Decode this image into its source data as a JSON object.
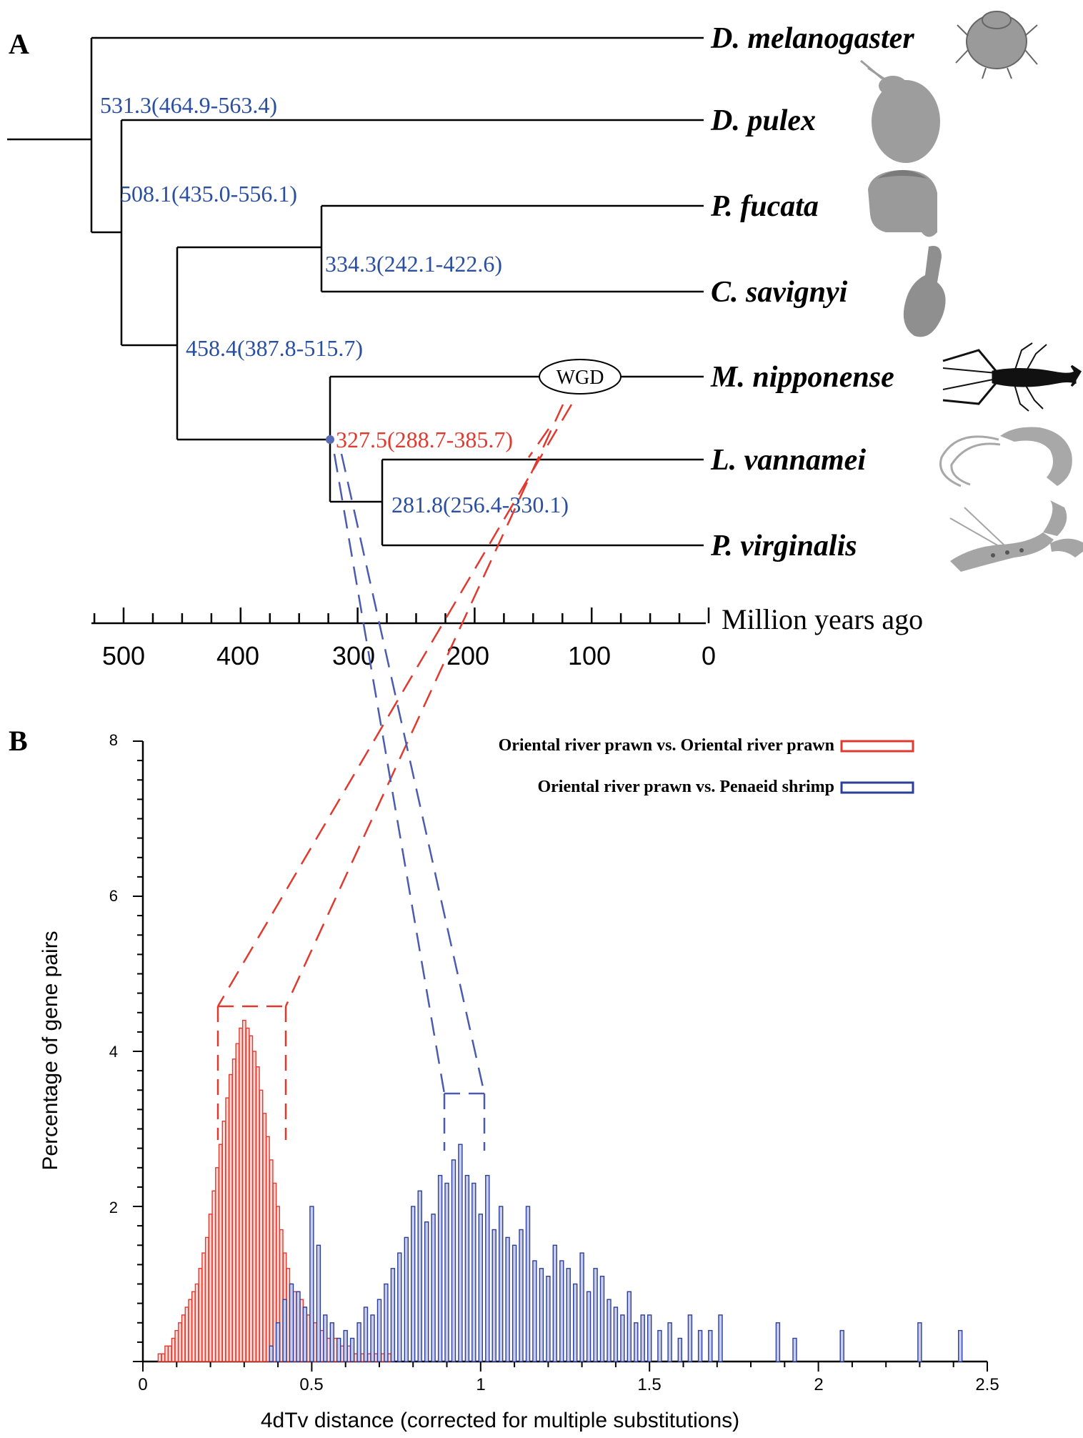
{
  "panel_a": {
    "label": "A",
    "axis_label": "Million years ago",
    "ticks": [
      "500",
      "400",
      "300",
      "200",
      "100",
      "0"
    ],
    "taxa": [
      "D. melanogaster",
      "D. pulex",
      "P. fucata",
      "C. savignyi",
      "M. nipponense",
      "L. vannamei",
      "P. virginalis"
    ],
    "nodes": [
      {
        "text": "531.3(464.9-563.4)",
        "color": "#2b4fa0"
      },
      {
        "text": "508.1(435.0-556.1)",
        "color": "#2b4fa0"
      },
      {
        "text": "334.3(242.1-422.6)",
        "color": "#2b4fa0"
      },
      {
        "text": "458.4(387.8-515.7)",
        "color": "#2b4fa0"
      },
      {
        "text": "327.5(288.7-385.7)",
        "color": "#e03a2f"
      },
      {
        "text": "281.8(256.4-330.1)",
        "color": "#2b4fa0"
      }
    ],
    "wgd_label": "WGD"
  },
  "panel_b": {
    "label": "B",
    "legend": [
      {
        "name": "Oriental river prawn vs. Oriental river prawn",
        "color": "#e03a2f"
      },
      {
        "name": "Oriental river prawn vs. Penaeid shrimp",
        "color": "#2b3f9a"
      }
    ]
  },
  "chart_data": {
    "type": "bar",
    "xlabel": "4dTv distance (corrected for multiple substitutions)",
    "ylabel": "Percentage of gene pairs",
    "xlim": [
      0,
      2.5
    ],
    "ylim": [
      0,
      8
    ],
    "x_ticks": [
      "0",
      "0.5",
      "1",
      "1.5",
      "2",
      "2.5"
    ],
    "y_ticks": [
      "2",
      "4",
      "6",
      "8"
    ],
    "series": [
      {
        "name": "Oriental river prawn vs. Oriental river prawn",
        "color": "#e03a2f",
        "x": [
          0.05,
          0.06,
          0.07,
          0.08,
          0.09,
          0.1,
          0.11,
          0.12,
          0.13,
          0.14,
          0.15,
          0.16,
          0.17,
          0.18,
          0.19,
          0.2,
          0.21,
          0.22,
          0.23,
          0.24,
          0.25,
          0.26,
          0.27,
          0.28,
          0.29,
          0.3,
          0.31,
          0.32,
          0.33,
          0.34,
          0.35,
          0.36,
          0.37,
          0.38,
          0.39,
          0.4,
          0.41,
          0.42,
          0.43,
          0.44,
          0.45,
          0.46,
          0.47,
          0.48,
          0.49,
          0.5,
          0.51,
          0.52,
          0.53,
          0.54,
          0.55,
          0.56,
          0.57,
          0.58,
          0.59,
          0.6,
          0.61,
          0.62,
          0.63,
          0.64,
          0.65,
          0.66,
          0.67,
          0.68,
          0.69,
          0.7,
          0.71,
          0.72,
          0.73
        ],
        "values": [
          0.1,
          0.1,
          0.2,
          0.2,
          0.3,
          0.4,
          0.5,
          0.6,
          0.7,
          0.8,
          0.9,
          1.0,
          1.2,
          1.4,
          1.6,
          1.9,
          2.2,
          2.5,
          2.8,
          3.1,
          3.4,
          3.7,
          3.9,
          4.1,
          4.3,
          4.4,
          4.3,
          4.2,
          4.0,
          3.8,
          3.5,
          3.2,
          2.9,
          2.6,
          2.3,
          2.0,
          1.7,
          1.4,
          1.2,
          1.0,
          0.9,
          0.9,
          0.8,
          0.7,
          0.6,
          0.6,
          0.5,
          0.5,
          0.4,
          0.4,
          0.3,
          0.3,
          0.3,
          0.2,
          0.2,
          0.2,
          0.2,
          0.2,
          0.1,
          0.1,
          0.1,
          0.1,
          0.1,
          0.1,
          0.1,
          0.1,
          0.1,
          0.1,
          0.1
        ]
      },
      {
        "name": "Oriental river prawn vs. Penaeid shrimp",
        "color": "#2b3f9a",
        "x": [
          0.38,
          0.4,
          0.42,
          0.44,
          0.46,
          0.48,
          0.5,
          0.52,
          0.54,
          0.56,
          0.58,
          0.6,
          0.62,
          0.64,
          0.66,
          0.68,
          0.7,
          0.72,
          0.74,
          0.76,
          0.78,
          0.8,
          0.82,
          0.84,
          0.86,
          0.88,
          0.9,
          0.92,
          0.94,
          0.96,
          0.98,
          1.0,
          1.02,
          1.04,
          1.06,
          1.08,
          1.1,
          1.12,
          1.14,
          1.16,
          1.18,
          1.2,
          1.22,
          1.24,
          1.26,
          1.28,
          1.3,
          1.32,
          1.34,
          1.36,
          1.38,
          1.4,
          1.42,
          1.44,
          1.46,
          1.48,
          1.5,
          1.53,
          1.56,
          1.59,
          1.62,
          1.65,
          1.68,
          1.71,
          1.88,
          1.93,
          2.07,
          2.3,
          2.42
        ],
        "values": [
          0.2,
          0.5,
          0.8,
          1.0,
          0.9,
          0.7,
          2.0,
          1.5,
          0.6,
          0.5,
          0.3,
          0.4,
          0.3,
          0.5,
          0.7,
          0.6,
          0.8,
          1.0,
          1.2,
          1.4,
          1.6,
          2.0,
          2.2,
          1.8,
          1.9,
          2.4,
          2.3,
          2.6,
          2.8,
          2.4,
          2.3,
          1.9,
          2.4,
          1.7,
          2.0,
          1.6,
          1.5,
          1.7,
          2.0,
          1.3,
          1.2,
          1.1,
          1.5,
          1.3,
          1.2,
          1.0,
          1.4,
          0.9,
          1.2,
          1.1,
          0.8,
          0.7,
          0.6,
          0.9,
          0.5,
          0.6,
          0.6,
          0.4,
          0.5,
          0.3,
          0.6,
          0.4,
          0.4,
          0.6,
          0.5,
          0.3,
          0.4,
          0.5,
          0.4
        ]
      }
    ]
  }
}
